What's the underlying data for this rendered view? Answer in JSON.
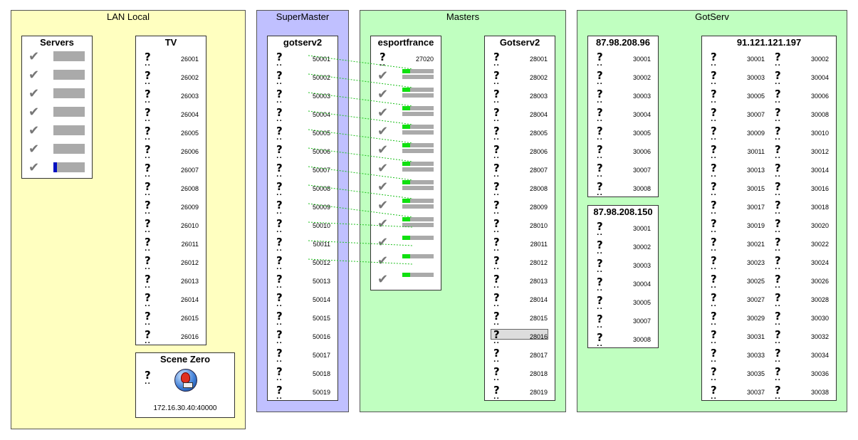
{
  "sections": {
    "lan": {
      "title": "LAN Local"
    },
    "supermaster": {
      "title": "SuperMaster"
    },
    "masters": {
      "title": "Masters"
    },
    "gotserv": {
      "title": "GotServ"
    }
  },
  "colors": {
    "lan_bg": "#ffffc0",
    "supermaster_bg": "#c0c0ff",
    "green_bg": "#c0ffc0",
    "link": "#20c020",
    "fill": "#10e010",
    "blue": "#0010c0"
  },
  "servers": {
    "title": "Servers",
    "icon": "check-icon",
    "items": [
      {
        "status": "ok",
        "load": 0
      },
      {
        "status": "ok",
        "load": 0
      },
      {
        "status": "ok",
        "load": 0
      },
      {
        "status": "ok",
        "load": 0
      },
      {
        "status": "ok",
        "load": 0
      },
      {
        "status": "ok",
        "load": 0
      },
      {
        "status": "ok",
        "load": 0.1
      }
    ]
  },
  "tv": {
    "title": "TV",
    "ports": [
      "26001",
      "26002",
      "26003",
      "26004",
      "26005",
      "26006",
      "26007",
      "26008",
      "26009",
      "26010",
      "26011",
      "26012",
      "26013",
      "26014",
      "26015",
      "26016"
    ]
  },
  "scene_zero": {
    "title": "Scene Zero",
    "address": "172.16.30.40:40000",
    "icon": "scene-zero-icon"
  },
  "gotserv2": {
    "title": "gotserv2",
    "ports": [
      "50001",
      "50002",
      "50003",
      "50004",
      "50005",
      "50006",
      "50007",
      "50008",
      "50009",
      "50010",
      "50011",
      "50012",
      "50013",
      "50014",
      "50015",
      "50016",
      "50017",
      "50018",
      "50019"
    ]
  },
  "esportfrance": {
    "title": "esportfrance",
    "port": "27020",
    "rows": 12
  },
  "gotserv2_master": {
    "title": "Gotserv2",
    "selected": "28016",
    "ports": [
      "28001",
      "28002",
      "28003",
      "28004",
      "28005",
      "28006",
      "28007",
      "28008",
      "28009",
      "28010",
      "28011",
      "28012",
      "28013",
      "28014",
      "28015",
      "28016",
      "28017",
      "28018",
      "28019"
    ]
  },
  "ip96": {
    "title": "87.98.208.96",
    "ports": [
      "30001",
      "30002",
      "30003",
      "30004",
      "30005",
      "30006",
      "30007",
      "30008"
    ]
  },
  "ip150": {
    "title": "87.98.208.150",
    "ports": [
      "30001",
      "30002",
      "30003",
      "30004",
      "30005",
      "30007",
      "30008"
    ]
  },
  "ip197": {
    "title": "91.121.121.197",
    "left": [
      "30001",
      "30003",
      "30005",
      "30007",
      "30009",
      "30011",
      "30013",
      "30015",
      "30017",
      "30019",
      "30021",
      "30023",
      "30025",
      "30027",
      "30029",
      "30031",
      "30033",
      "30035",
      "30037"
    ],
    "right": [
      "30002",
      "30004",
      "30006",
      "30008",
      "30010",
      "30012",
      "30014",
      "30016",
      "30018",
      "30020",
      "30022",
      "30024",
      "30026",
      "30028",
      "30030",
      "30032",
      "30034",
      "30036",
      "30038"
    ]
  }
}
